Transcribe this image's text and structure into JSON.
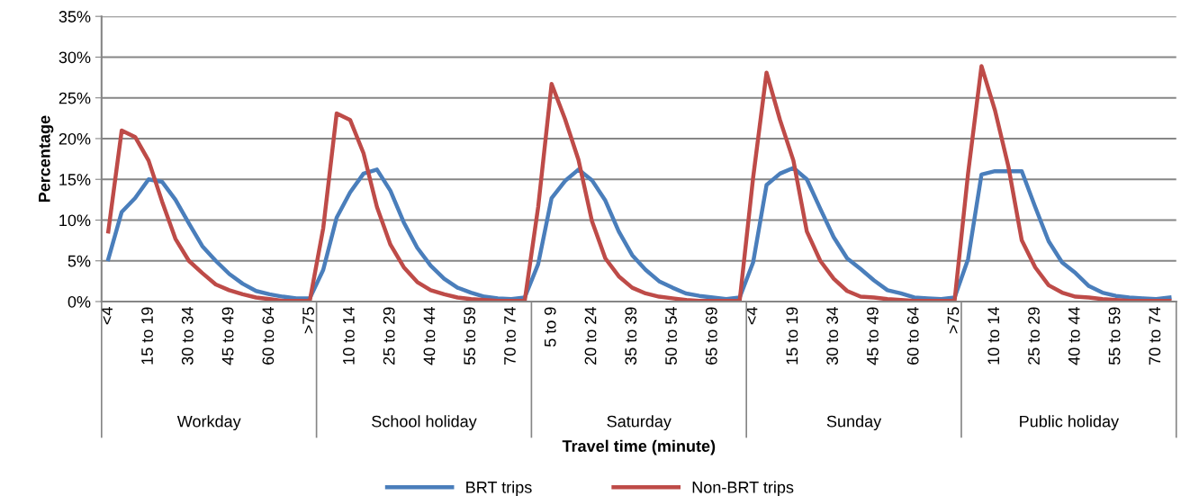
{
  "chart_data": {
    "type": "line",
    "xlabel": "Travel time (minute)",
    "ylabel": "Percentage",
    "categories": [
      "<4",
      null,
      null,
      "15 to 19",
      null,
      null,
      "30 to 34",
      null,
      null,
      "45 to 49",
      null,
      null,
      "60 to 64",
      null,
      null,
      ">75",
      null,
      null,
      "10 to 14",
      null,
      null,
      "25 to 29",
      null,
      null,
      "40 to 44",
      null,
      null,
      "55 to 59",
      null,
      null,
      "70 to 74",
      null,
      null,
      "5 to 9",
      null,
      null,
      "20 to 24",
      null,
      null,
      "35 to 39",
      null,
      null,
      "50 to 54",
      null,
      null,
      "65 to 69",
      null,
      null,
      "<4",
      null,
      null,
      "15 to 19",
      null,
      null,
      "30 to 34",
      null,
      null,
      "45 to 49",
      null,
      null,
      "60 to 64",
      null,
      null,
      ">75",
      null,
      null,
      "10 to 14",
      null,
      null,
      "25 to 29",
      null,
      null,
      "40 to 44",
      null,
      null,
      "55 to 59",
      null,
      null,
      "70 to 74",
      null
    ],
    "series": [
      {
        "name": "BRT trips",
        "color": "#4a7ebb",
        "values": [
          5.2,
          11.0,
          12.7,
          15.0,
          14.7,
          12.5,
          9.6,
          6.8,
          5.0,
          3.4,
          2.2,
          1.3,
          0.9,
          0.6,
          0.4,
          0.4,
          3.9,
          10.3,
          13.4,
          15.7,
          16.2,
          13.6,
          9.7,
          6.6,
          4.4,
          2.8,
          1.7,
          1.1,
          0.6,
          0.4,
          0.3,
          0.5,
          4.6,
          12.7,
          14.8,
          16.2,
          14.9,
          12.4,
          8.6,
          5.7,
          3.9,
          2.5,
          1.7,
          1.0,
          0.7,
          0.5,
          0.3,
          0.5,
          4.8,
          14.3,
          15.7,
          16.4,
          15.0,
          11.4,
          7.9,
          5.3,
          4.0,
          2.6,
          1.4,
          1.0,
          0.5,
          0.4,
          0.3,
          0.5,
          5.2,
          15.6,
          16.0,
          16.0,
          16.0,
          11.6,
          7.4,
          4.8,
          3.5,
          1.9,
          1.1,
          0.7,
          0.5,
          0.4,
          0.3,
          0.5
        ]
      },
      {
        "name": "Non-BRT trips",
        "color": "#be4b48",
        "values": [
          8.6,
          21.0,
          20.2,
          17.3,
          12.3,
          7.7,
          5.0,
          3.5,
          2.1,
          1.4,
          0.9,
          0.5,
          0.3,
          0.1,
          0.1,
          0.1,
          9.0,
          23.1,
          22.3,
          18.2,
          11.6,
          7.0,
          4.2,
          2.4,
          1.4,
          0.9,
          0.5,
          0.3,
          0.2,
          0.1,
          0.1,
          0.1,
          11.6,
          26.7,
          22.4,
          17.4,
          9.9,
          5.3,
          3.1,
          1.7,
          1.0,
          0.6,
          0.4,
          0.2,
          0.1,
          0.1,
          0.1,
          0.1,
          15.2,
          28.1,
          22.3,
          17.3,
          8.6,
          5.0,
          2.8,
          1.3,
          0.6,
          0.5,
          0.3,
          0.2,
          0.1,
          0.1,
          0.1,
          0.1,
          15.7,
          28.9,
          23.5,
          16.6,
          7.5,
          4.2,
          2.0,
          1.1,
          0.6,
          0.5,
          0.3,
          0.2,
          0.1,
          0.1,
          0.1,
          0.1
        ]
      }
    ],
    "annotations": [
      "Workday",
      "School holiday",
      "Saturday",
      "Sunday",
      "Public holiday"
    ],
    "ylim": [
      0,
      35
    ],
    "yticks": [
      {
        "value": 0,
        "label": "0%"
      },
      {
        "value": 5,
        "label": "5%"
      },
      {
        "value": 10,
        "label": "10%"
      },
      {
        "value": 15,
        "label": "15%"
      },
      {
        "value": 20,
        "label": "20%"
      },
      {
        "value": 25,
        "label": "25%"
      },
      {
        "value": 30,
        "label": "30%"
      },
      {
        "value": 35,
        "label": "35%"
      }
    ],
    "grid": "y",
    "legend": "bottom",
    "marker": "none",
    "line_style": "solid"
  }
}
